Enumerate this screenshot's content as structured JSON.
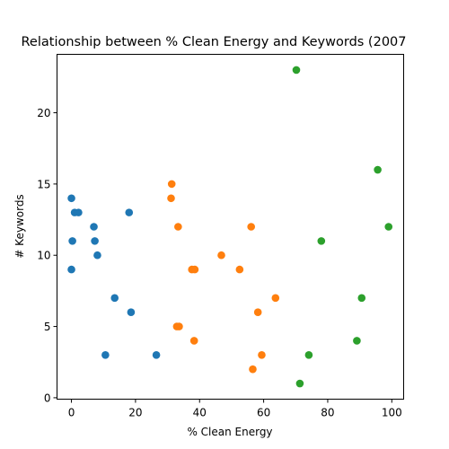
{
  "chart_data": {
    "type": "scatter",
    "title": "Relationship between % Clean Energy and Keywords (2007",
    "xlabel": "% Clean Energy",
    "ylabel": "# Keywords",
    "xlim": [
      -4.5,
      103.7
    ],
    "ylim": [
      -0.1,
      24.1
    ],
    "xticks": [
      0,
      20,
      40,
      60,
      80,
      100
    ],
    "yticks": [
      0,
      5,
      10,
      15,
      20
    ],
    "grid": false,
    "legend": "none",
    "series": [
      {
        "color": "#1f77b4",
        "points": [
          {
            "x": 0.0,
            "y": 14
          },
          {
            "x": 0.3,
            "y": 11
          },
          {
            "x": 0.0,
            "y": 9
          },
          {
            "x": 1.0,
            "y": 13
          },
          {
            "x": 2.2,
            "y": 13
          },
          {
            "x": 7.0,
            "y": 12
          },
          {
            "x": 7.3,
            "y": 11
          },
          {
            "x": 8.1,
            "y": 10
          },
          {
            "x": 13.5,
            "y": 7
          },
          {
            "x": 18.0,
            "y": 13
          },
          {
            "x": 18.6,
            "y": 6
          },
          {
            "x": 10.6,
            "y": 3
          },
          {
            "x": 26.5,
            "y": 3
          }
        ]
      },
      {
        "color": "#ff7f0e",
        "points": [
          {
            "x": 31.3,
            "y": 15
          },
          {
            "x": 31.1,
            "y": 14
          },
          {
            "x": 33.3,
            "y": 12
          },
          {
            "x": 37.6,
            "y": 9
          },
          {
            "x": 38.5,
            "y": 9
          },
          {
            "x": 46.8,
            "y": 10
          },
          {
            "x": 52.5,
            "y": 9
          },
          {
            "x": 56.1,
            "y": 12
          },
          {
            "x": 58.2,
            "y": 6
          },
          {
            "x": 63.7,
            "y": 7
          },
          {
            "x": 32.9,
            "y": 5
          },
          {
            "x": 33.6,
            "y": 5
          },
          {
            "x": 38.3,
            "y": 4
          },
          {
            "x": 59.4,
            "y": 3
          },
          {
            "x": 56.6,
            "y": 2
          }
        ]
      },
      {
        "color": "#2ca02c",
        "points": [
          {
            "x": 70.2,
            "y": 23
          },
          {
            "x": 95.6,
            "y": 16
          },
          {
            "x": 99.0,
            "y": 12
          },
          {
            "x": 78.0,
            "y": 11
          },
          {
            "x": 90.6,
            "y": 7
          },
          {
            "x": 89.1,
            "y": 4
          },
          {
            "x": 74.1,
            "y": 3
          },
          {
            "x": 71.3,
            "y": 1
          }
        ]
      }
    ]
  }
}
